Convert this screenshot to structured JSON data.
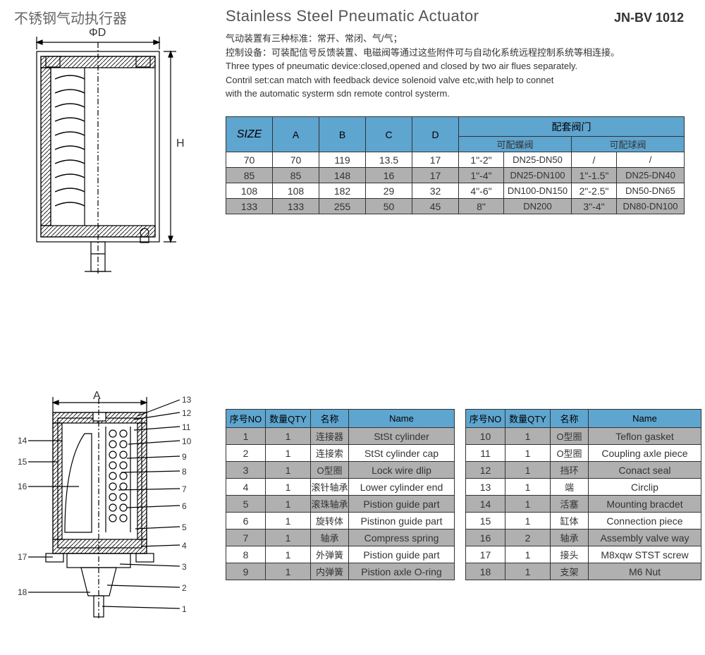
{
  "header": {
    "cn_title": "不锈钢气动执行器",
    "en_title": "Stainless Steel Pneumatic Actuator",
    "model": "JN-BV 1012"
  },
  "description": {
    "line1": "气动装置有三种标准：常开、常闭、气/气；",
    "line2": "控制设备：可装配信号反馈装置、电磁阀等通过这些附件可与自动化系统远程控制系统等相连接。",
    "line3": "Three types of pneumatic device:closed,opened and closed by two air flues separately.",
    "line4": "Contril set:can match with feedback device   solenoid valve etc,with help to connet",
    "line5": "with the automatic systerm sdn remote control systerm."
  },
  "diagram_labels": {
    "phi_d": "ΦD",
    "h": "H",
    "a": "A"
  },
  "size_table": {
    "headers": {
      "size": "SIZE",
      "a": "A",
      "b": "B",
      "c": "C",
      "d": "D",
      "valve_set": "配套阀门",
      "butterfly": "可配蝶阀",
      "ball": "可配球阀"
    },
    "rows": [
      {
        "size": "70",
        "a": "70",
        "b": "119",
        "c": "13.5",
        "d": "17",
        "bf1": "1\"-2\"",
        "bf2": "DN25-DN50",
        "bl1": "/",
        "bl2": "/"
      },
      {
        "size": "85",
        "a": "85",
        "b": "148",
        "c": "16",
        "d": "17",
        "bf1": "1\"-4\"",
        "bf2": "DN25-DN100",
        "bl1": "1\"-1.5\"",
        "bl2": "DN25-DN40"
      },
      {
        "size": "108",
        "a": "108",
        "b": "182",
        "c": "29",
        "d": "32",
        "bf1": "4\"-6\"",
        "bf2": "DN100-DN150",
        "bl1": "2\"-2.5\"",
        "bl2": "DN50-DN65"
      },
      {
        "size": "133",
        "a": "133",
        "b": "255",
        "c": "50",
        "d": "45",
        "bf1": "8\"",
        "bf2": "DN200",
        "bl1": "3\"-4\"",
        "bl2": "DN80-DN100"
      }
    ]
  },
  "parts_headers": {
    "no": "序号NO",
    "qty": "数量QTY",
    "name_cn": "名称",
    "name_en": "Name"
  },
  "parts1": [
    {
      "no": "1",
      "qty": "1",
      "cn": "连接器",
      "en": "StSt cylinder"
    },
    {
      "no": "2",
      "qty": "1",
      "cn": "连接索",
      "en": "StSt cylinder cap"
    },
    {
      "no": "3",
      "qty": "1",
      "cn": "O型圈",
      "en": "Lock wire dlip"
    },
    {
      "no": "4",
      "qty": "1",
      "cn": "滚针轴承",
      "en": "Lower cylinder end"
    },
    {
      "no": "5",
      "qty": "1",
      "cn": "滚珠轴承",
      "en": "Pistion guide part"
    },
    {
      "no": "6",
      "qty": "1",
      "cn": "旋转体",
      "en": "Pistinon guide part"
    },
    {
      "no": "7",
      "qty": "1",
      "cn": "轴承",
      "en": "Compress spring"
    },
    {
      "no": "8",
      "qty": "1",
      "cn": "外弹簧",
      "en": "Pistion guide part"
    },
    {
      "no": "9",
      "qty": "1",
      "cn": "内弹簧",
      "en": "Pistion axle O-ring"
    }
  ],
  "parts2": [
    {
      "no": "10",
      "qty": "1",
      "cn": "O型圈",
      "en": "Teflon gasket"
    },
    {
      "no": "11",
      "qty": "1",
      "cn": "O型圈",
      "en": "Coupling axle piece"
    },
    {
      "no": "12",
      "qty": "1",
      "cn": "挡环",
      "en": "Conact seal"
    },
    {
      "no": "13",
      "qty": "1",
      "cn": "端",
      "en": "Circlip"
    },
    {
      "no": "14",
      "qty": "1",
      "cn": "活塞",
      "en": "Mounting bracdet"
    },
    {
      "no": "15",
      "qty": "1",
      "cn": "缸体",
      "en": "Connection piece"
    },
    {
      "no": "16",
      "qty": "2",
      "cn": "轴承",
      "en": "Assembly valve way"
    },
    {
      "no": "17",
      "qty": "1",
      "cn": "接头",
      "en": "M8xqw STST screw"
    },
    {
      "no": "18",
      "qty": "1",
      "cn": "支架",
      "en": "M6 Nut"
    }
  ],
  "callouts": [
    "1",
    "2",
    "3",
    "4",
    "5",
    "6",
    "7",
    "8",
    "9",
    "10",
    "11",
    "12",
    "13",
    "14",
    "15",
    "16",
    "17",
    "18"
  ],
  "colors": {
    "header_bg": "#5ea5d0",
    "alt_row": "#b0b0b0",
    "border": "#333333",
    "text": "#333333"
  }
}
